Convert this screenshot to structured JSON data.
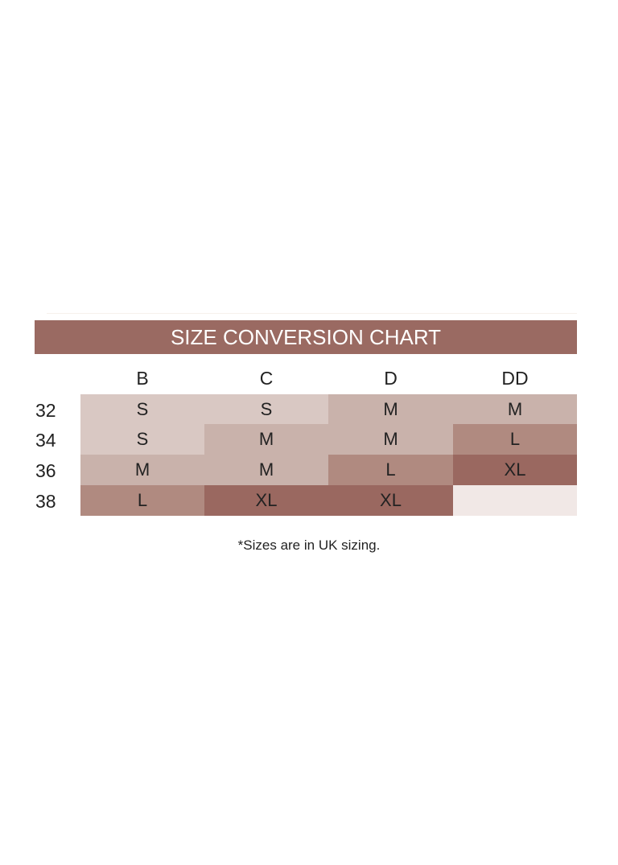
{
  "title": "SIZE CONVERSION CHART",
  "cup_sizes": [
    "B",
    "C",
    "D",
    "DD"
  ],
  "band_sizes": [
    "32",
    "34",
    "36",
    "38"
  ],
  "sizes": [
    [
      "S",
      "S",
      "M",
      "M"
    ],
    [
      "S",
      "M",
      "M",
      "L"
    ],
    [
      "M",
      "M",
      "L",
      "XL"
    ],
    [
      "L",
      "XL",
      "XL",
      ""
    ]
  ],
  "colors": {
    "banner": "#9a6a62",
    "S": "#d9c8c3",
    "M": "#c9b2ab",
    "L": "#b08a80",
    "XL": "#9a6860",
    "empty": "#f1e8e6"
  },
  "footnote": "*Sizes are in UK sizing."
}
